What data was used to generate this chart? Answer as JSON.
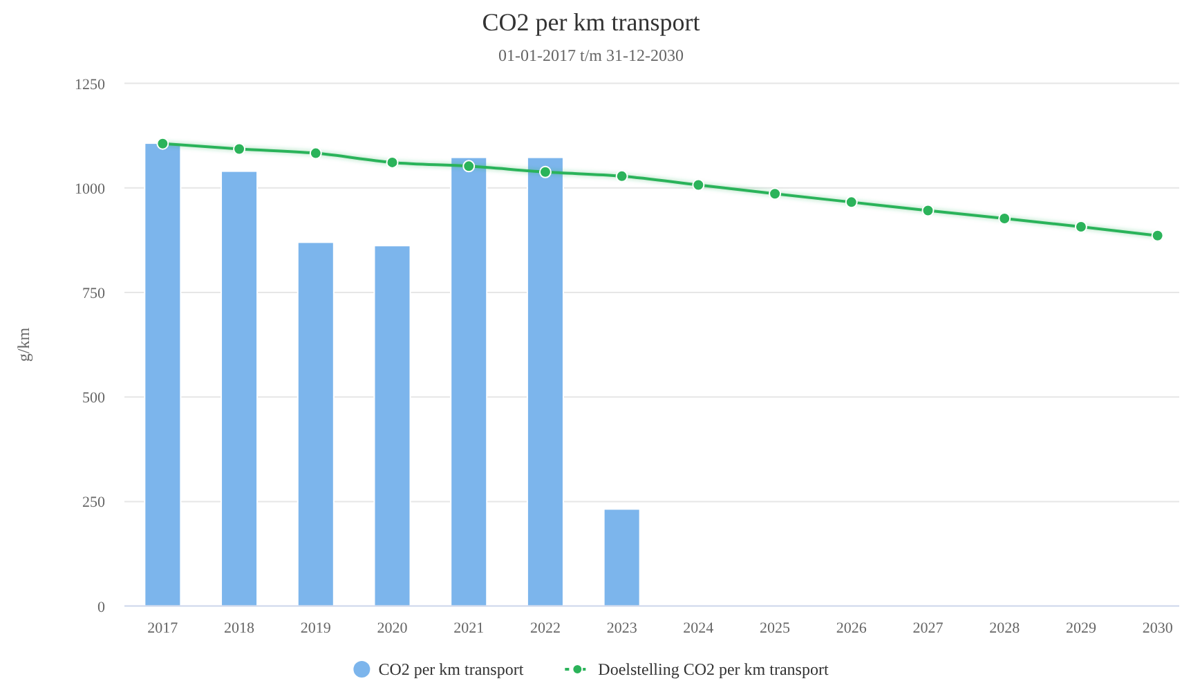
{
  "chart_data": {
    "type": "bar",
    "title": "CO2 per km transport",
    "subtitle": "01-01-2017 t/m 31-12-2030",
    "ylabel": "g/km",
    "categories": [
      "2017",
      "2018",
      "2019",
      "2020",
      "2021",
      "2022",
      "2023",
      "2024",
      "2025",
      "2026",
      "2027",
      "2028",
      "2029",
      "2030"
    ],
    "series": [
      {
        "name": "CO2 per km transport",
        "color": "#7cb5ec",
        "values": [
          1107,
          1040,
          870,
          862,
          1073,
          1073,
          232,
          null,
          null,
          null,
          null,
          null,
          null,
          null
        ]
      },
      {
        "name": "Doelstelling CO2 per km transport",
        "type": "line",
        "color": "#2bb35a",
        "values": [
          1106,
          1093,
          1083,
          1061,
          1052,
          1038,
          1028,
          1007,
          986,
          966,
          946,
          927,
          907,
          886
        ]
      }
    ],
    "ylim": [
      0,
      1250
    ],
    "yticks": [
      0,
      250,
      500,
      750,
      1000,
      1250
    ],
    "grid": "y",
    "legend": "bottom",
    "marker": "circle"
  }
}
